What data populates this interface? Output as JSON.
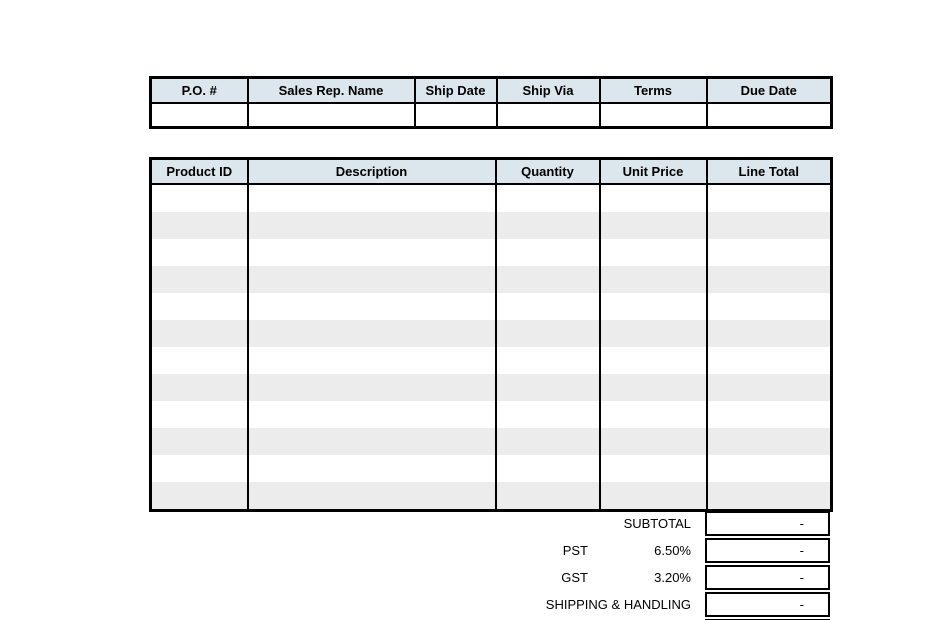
{
  "colors": {
    "header_fill": "#dce6ed",
    "stripe_fill": "#ececec",
    "border": "#000000",
    "page_background": "#ffffff"
  },
  "order_info_table": {
    "headers": [
      "P.O. #",
      "Sales Rep. Name",
      "Ship Date",
      "Ship Via",
      "Terms",
      "Due Date"
    ],
    "row_values": [
      "",
      "",
      "",
      "",
      "",
      ""
    ]
  },
  "line_items_table": {
    "headers": [
      "Product ID",
      "Description",
      "Quantity",
      "Unit Price",
      "Line Total"
    ],
    "row_count": 12,
    "rows_empty": true
  },
  "summary": {
    "rows": [
      {
        "label": "SUBTOTAL",
        "rate": "",
        "value": "-"
      },
      {
        "label": "PST",
        "rate": "6.50%",
        "value": "-"
      },
      {
        "label": "GST",
        "rate": "3.20%",
        "value": "-"
      },
      {
        "label": "SHIPPING & HANDLING",
        "rate": "",
        "value": "-"
      }
    ]
  }
}
